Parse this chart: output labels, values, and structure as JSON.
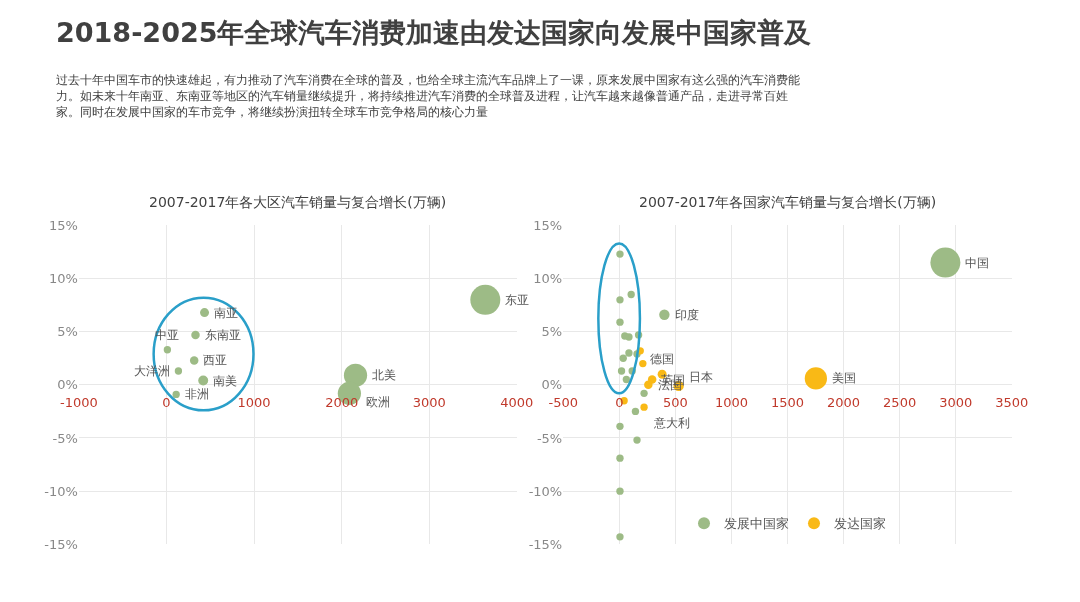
{
  "chart_data": [
    {
      "type": "other",
      "title": "2018-2025年全球汽车消费加速由发达国家向发展中国家普及",
      "subtitle": "过去十年中国车市的快速雄起，有力推动了汽车消费在全球的普及，也给全球主流汽车品牌上了一课，原来发展中国家有这么强的汽车消费能力。如未来十年南亚、东南亚等地区的汽车销量继续提升，将持续推进汽车消费的全球普及进程，让汽车越来越像普通产品，走进寻常百姓家。同时在发展中国家的车市竞争，将继续扮演扭转全球车市竞争格局的核心力量"
    },
    {
      "type": "bubble",
      "title": "2007-2017年各大区汽车销量与复合增长(万辆)",
      "color": "#9dbb86",
      "x": [
        3640,
        2158,
        2088,
        434,
        331,
        316,
        10,
        136,
        419,
        110
      ],
      "values": [
        8.0,
        0.9,
        -0.8,
        6.8,
        4.7,
        2.3,
        3.3,
        1.3,
        0.4,
        -0.9
      ],
      "sizes": [
        1,
        0.6,
        0.6,
        0.09,
        0.08,
        0.08,
        0.06,
        0.06,
        0.11,
        0.06
      ],
      "xlim": [
        -1000,
        4000
      ],
      "xticks": [
        -1000,
        0,
        1000,
        2000,
        3000,
        4000
      ],
      "ylim": [
        -15,
        15
      ],
      "yticks": [
        {
          "value": -15,
          "label": "-15%"
        },
        {
          "value": -10,
          "label": "-10%"
        },
        {
          "value": -5,
          "label": "-5%"
        },
        {
          "value": 0,
          "label": "0%"
        },
        {
          "value": 5,
          "label": "5%"
        },
        {
          "value": 10,
          "label": "10%"
        },
        {
          "value": 15,
          "label": "15%"
        }
      ],
      "grid": true,
      "legend": false,
      "annotations": [
        {
          "text": "东亚",
          "x": 3640,
          "y": 8.0
        },
        {
          "text": "北美",
          "x": 2158,
          "y": 0.9
        },
        {
          "text": "欧洲",
          "x": 2088,
          "y": -0.8
        },
        {
          "text": "南亚",
          "x": 434,
          "y": 6.8
        },
        {
          "text": "东南亚",
          "x": 331,
          "y": 4.7
        },
        {
          "text": "西亚",
          "x": 316,
          "y": 2.3
        },
        {
          "text": "中亚",
          "x": 10,
          "y": 3.3
        },
        {
          "text": "大洋洲",
          "x": 136,
          "y": 1.3
        },
        {
          "text": "南美",
          "x": 419,
          "y": 0.4
        },
        {
          "text": "非洲",
          "x": 110,
          "y": -0.9
        }
      ]
    },
    {
      "type": "bubble",
      "title": "2007-2017年各国家汽车销量与复合增长(万辆)",
      "series": [
        {
          "name": "发展中国家",
          "color": "#9dbb86",
          "x": [
            2908,
            402,
            106,
            172,
            86,
            49,
            86,
            158,
            115,
            63,
            144,
            158,
            221,
            20,
            35,
            6,
            6,
            6,
            6,
            6,
            6,
            6
          ],
          "values": [
            11.5,
            6.6,
            8.5,
            4.7,
            4.5,
            4.6,
            3.0,
            2.9,
            1.3,
            0.5,
            -2.5,
            -5.2,
            -0.8,
            1.3,
            2.5,
            12.3,
            8.0,
            5.9,
            -3.9,
            -6.9,
            -10.0,
            -14.3
          ],
          "sizes": [
            1,
            0.12,
            0.06,
            0.06,
            0.06,
            0.06,
            0.06,
            0.06,
            0.06,
            0.06,
            0.06,
            0.06,
            0.06,
            0.06,
            0.06,
            0.06,
            0.06,
            0.06,
            0.06,
            0.06,
            0.06,
            0.06
          ]
        },
        {
          "name": "发达国家",
          "color": "#f9b916",
          "x": [
            1753,
            382,
            529,
            293,
            259,
            221,
            187,
            210,
            43
          ],
          "values": [
            0.6,
            1.0,
            -0.1,
            0.5,
            0.0,
            -2.1,
            3.2,
            2.0,
            -1.5
          ],
          "sizes": [
            0.55,
            0.09,
            0.12,
            0.08,
            0.08,
            0.06,
            0.06,
            0.06,
            0.06
          ]
        }
      ],
      "xlim": [
        -500,
        3500
      ],
      "xticks": [
        -500,
        0,
        500,
        1000,
        1500,
        2000,
        2500,
        3000,
        3500
      ],
      "ylim": [
        -15,
        15
      ],
      "yticks": [
        {
          "value": -15,
          "label": "-15%"
        },
        {
          "value": -10,
          "label": "-10%"
        },
        {
          "value": -5,
          "label": "-5%"
        },
        {
          "value": 0,
          "label": "0%"
        },
        {
          "value": 5,
          "label": "5%"
        },
        {
          "value": 10,
          "label": "10%"
        },
        {
          "value": 15,
          "label": "15%"
        }
      ],
      "grid": true,
      "legend": "bottom",
      "annotations": [
        {
          "text": "中国",
          "x": 2908,
          "y": 11.5
        },
        {
          "text": "印度",
          "x": 402,
          "y": 6.6
        },
        {
          "text": "美国",
          "x": 1753,
          "y": 0.6
        },
        {
          "text": "德国",
          "x": 382,
          "y": 1.0
        },
        {
          "text": "日本",
          "x": 529,
          "y": -0.1
        },
        {
          "text": "英国",
          "x": 293,
          "y": 0.5
        },
        {
          "text": "法国",
          "x": 259,
          "y": 0.0
        },
        {
          "text": "意大利",
          "x": 221,
          "y": -2.1
        }
      ]
    }
  ]
}
